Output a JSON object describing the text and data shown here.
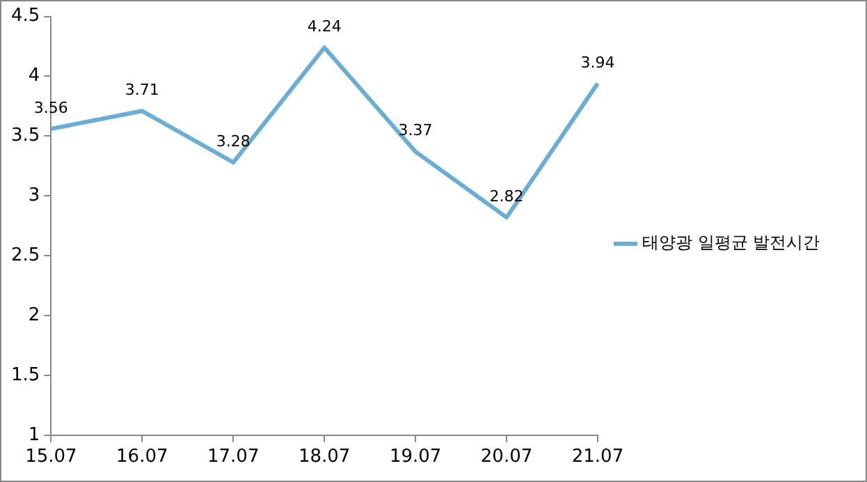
{
  "chart_data": {
    "type": "line",
    "categories": [
      "15.07",
      "16.07",
      "17.07",
      "18.07",
      "19.07",
      "20.07",
      "21.07"
    ],
    "series": [
      {
        "name": "태양광 일평균 발전시간",
        "color": "#6aaed3",
        "values": [
          3.56,
          3.71,
          3.28,
          4.24,
          3.37,
          2.82,
          3.94
        ]
      }
    ],
    "ylim": [
      1,
      4.5
    ],
    "yticks": [
      1,
      1.5,
      2,
      2.5,
      3,
      3.5,
      4,
      4.5
    ],
    "grid": false,
    "legend": "right",
    "data_labels": true,
    "marker": "none",
    "line_style": "solid"
  }
}
